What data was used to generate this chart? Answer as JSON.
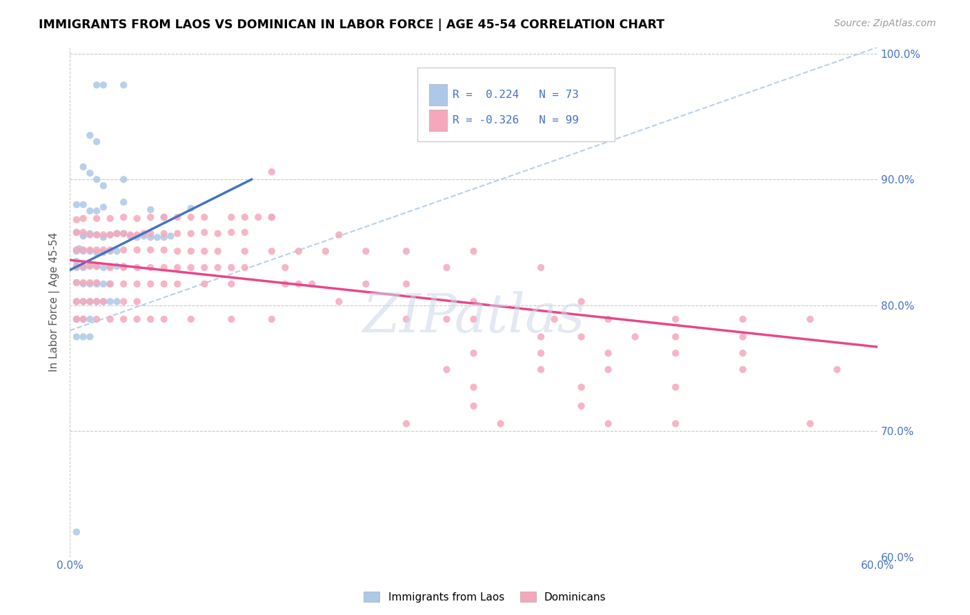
{
  "title": "IMMIGRANTS FROM LAOS VS DOMINICAN IN LABOR FORCE | AGE 45-54 CORRELATION CHART",
  "source": "Source: ZipAtlas.com",
  "ylabel": "In Labor Force | Age 45-54",
  "x_min": 0.0,
  "x_max": 0.6,
  "y_min": 0.6,
  "y_max": 1.005,
  "x_tick_positions": [
    0.0,
    0.1,
    0.2,
    0.3,
    0.4,
    0.5,
    0.6
  ],
  "x_tick_labels": [
    "0.0%",
    "",
    "",
    "",
    "",
    "",
    "60.0%"
  ],
  "y_ticks_right": [
    0.6,
    0.7,
    0.8,
    0.9,
    1.0
  ],
  "y_tick_labels_right": [
    "60.0%",
    "70.0%",
    "80.0%",
    "90.0%",
    "100.0%"
  ],
  "laos_color": "#adc8e8",
  "dominican_color": "#f5a8bb",
  "laos_line_color": "#4472c4",
  "dominican_line_color": "#e8468a",
  "diagonal_line_color": "#b8d0e8",
  "laos_R": 0.224,
  "laos_N": 73,
  "dominican_R": -0.326,
  "dominican_N": 99,
  "watermark": "ZIPatlas",
  "laos_line": [
    [
      0.0,
      0.828
    ],
    [
      0.135,
      0.9
    ]
  ],
  "dominican_line": [
    [
      0.0,
      0.836
    ],
    [
      0.6,
      0.767
    ]
  ],
  "diagonal_line": [
    [
      0.0,
      0.78
    ],
    [
      0.6,
      1.005
    ]
  ],
  "laos_scatter": [
    [
      0.005,
      0.835
    ],
    [
      0.007,
      0.845
    ],
    [
      0.01,
      0.855
    ],
    [
      0.02,
      0.975
    ],
    [
      0.025,
      0.975
    ],
    [
      0.04,
      0.975
    ],
    [
      0.015,
      0.935
    ],
    [
      0.02,
      0.93
    ],
    [
      0.01,
      0.91
    ],
    [
      0.015,
      0.905
    ],
    [
      0.02,
      0.9
    ],
    [
      0.025,
      0.895
    ],
    [
      0.04,
      0.9
    ],
    [
      0.005,
      0.88
    ],
    [
      0.01,
      0.88
    ],
    [
      0.015,
      0.875
    ],
    [
      0.02,
      0.875
    ],
    [
      0.025,
      0.878
    ],
    [
      0.04,
      0.882
    ],
    [
      0.06,
      0.876
    ],
    [
      0.07,
      0.87
    ],
    [
      0.09,
      0.877
    ],
    [
      0.005,
      0.858
    ],
    [
      0.01,
      0.856
    ],
    [
      0.015,
      0.857
    ],
    [
      0.02,
      0.856
    ],
    [
      0.025,
      0.854
    ],
    [
      0.03,
      0.856
    ],
    [
      0.035,
      0.857
    ],
    [
      0.04,
      0.857
    ],
    [
      0.045,
      0.855
    ],
    [
      0.05,
      0.854
    ],
    [
      0.055,
      0.855
    ],
    [
      0.06,
      0.854
    ],
    [
      0.065,
      0.854
    ],
    [
      0.07,
      0.854
    ],
    [
      0.075,
      0.855
    ],
    [
      0.005,
      0.843
    ],
    [
      0.01,
      0.843
    ],
    [
      0.015,
      0.843
    ],
    [
      0.02,
      0.842
    ],
    [
      0.025,
      0.842
    ],
    [
      0.03,
      0.843
    ],
    [
      0.035,
      0.843
    ],
    [
      0.005,
      0.83
    ],
    [
      0.01,
      0.83
    ],
    [
      0.015,
      0.832
    ],
    [
      0.02,
      0.831
    ],
    [
      0.025,
      0.83
    ],
    [
      0.03,
      0.831
    ],
    [
      0.035,
      0.831
    ],
    [
      0.04,
      0.831
    ],
    [
      0.005,
      0.818
    ],
    [
      0.01,
      0.817
    ],
    [
      0.015,
      0.817
    ],
    [
      0.02,
      0.817
    ],
    [
      0.025,
      0.817
    ],
    [
      0.03,
      0.817
    ],
    [
      0.005,
      0.803
    ],
    [
      0.01,
      0.803
    ],
    [
      0.015,
      0.803
    ],
    [
      0.02,
      0.803
    ],
    [
      0.025,
      0.803
    ],
    [
      0.03,
      0.803
    ],
    [
      0.035,
      0.803
    ],
    [
      0.005,
      0.789
    ],
    [
      0.01,
      0.789
    ],
    [
      0.015,
      0.789
    ],
    [
      0.005,
      0.775
    ],
    [
      0.01,
      0.775
    ],
    [
      0.015,
      0.775
    ],
    [
      0.005,
      0.62
    ]
  ],
  "dominican_scatter": [
    [
      0.005,
      0.858
    ],
    [
      0.01,
      0.858
    ],
    [
      0.015,
      0.856
    ],
    [
      0.02,
      0.856
    ],
    [
      0.025,
      0.856
    ],
    [
      0.03,
      0.856
    ],
    [
      0.035,
      0.857
    ],
    [
      0.04,
      0.857
    ],
    [
      0.045,
      0.856
    ],
    [
      0.05,
      0.856
    ],
    [
      0.055,
      0.857
    ],
    [
      0.06,
      0.857
    ],
    [
      0.07,
      0.857
    ],
    [
      0.08,
      0.857
    ],
    [
      0.09,
      0.857
    ],
    [
      0.1,
      0.858
    ],
    [
      0.11,
      0.857
    ],
    [
      0.12,
      0.858
    ],
    [
      0.13,
      0.858
    ],
    [
      0.005,
      0.868
    ],
    [
      0.01,
      0.869
    ],
    [
      0.02,
      0.869
    ],
    [
      0.03,
      0.869
    ],
    [
      0.04,
      0.87
    ],
    [
      0.05,
      0.869
    ],
    [
      0.06,
      0.87
    ],
    [
      0.07,
      0.87
    ],
    [
      0.08,
      0.87
    ],
    [
      0.09,
      0.87
    ],
    [
      0.1,
      0.87
    ],
    [
      0.12,
      0.87
    ],
    [
      0.13,
      0.87
    ],
    [
      0.14,
      0.87
    ],
    [
      0.15,
      0.87
    ],
    [
      0.005,
      0.844
    ],
    [
      0.01,
      0.844
    ],
    [
      0.015,
      0.844
    ],
    [
      0.02,
      0.844
    ],
    [
      0.025,
      0.844
    ],
    [
      0.03,
      0.844
    ],
    [
      0.04,
      0.844
    ],
    [
      0.05,
      0.844
    ],
    [
      0.06,
      0.844
    ],
    [
      0.07,
      0.844
    ],
    [
      0.08,
      0.843
    ],
    [
      0.09,
      0.843
    ],
    [
      0.1,
      0.843
    ],
    [
      0.11,
      0.843
    ],
    [
      0.13,
      0.843
    ],
    [
      0.15,
      0.843
    ],
    [
      0.17,
      0.843
    ],
    [
      0.19,
      0.843
    ],
    [
      0.22,
      0.843
    ],
    [
      0.005,
      0.831
    ],
    [
      0.01,
      0.831
    ],
    [
      0.015,
      0.831
    ],
    [
      0.02,
      0.831
    ],
    [
      0.03,
      0.83
    ],
    [
      0.04,
      0.83
    ],
    [
      0.05,
      0.83
    ],
    [
      0.06,
      0.83
    ],
    [
      0.07,
      0.83
    ],
    [
      0.08,
      0.83
    ],
    [
      0.09,
      0.83
    ],
    [
      0.1,
      0.83
    ],
    [
      0.11,
      0.83
    ],
    [
      0.12,
      0.83
    ],
    [
      0.13,
      0.83
    ],
    [
      0.16,
      0.83
    ],
    [
      0.005,
      0.818
    ],
    [
      0.01,
      0.818
    ],
    [
      0.015,
      0.818
    ],
    [
      0.02,
      0.818
    ],
    [
      0.03,
      0.817
    ],
    [
      0.04,
      0.817
    ],
    [
      0.05,
      0.817
    ],
    [
      0.06,
      0.817
    ],
    [
      0.07,
      0.817
    ],
    [
      0.08,
      0.817
    ],
    [
      0.1,
      0.817
    ],
    [
      0.12,
      0.817
    ],
    [
      0.16,
      0.817
    ],
    [
      0.18,
      0.817
    ],
    [
      0.005,
      0.803
    ],
    [
      0.01,
      0.803
    ],
    [
      0.015,
      0.803
    ],
    [
      0.02,
      0.803
    ],
    [
      0.025,
      0.803
    ],
    [
      0.04,
      0.803
    ],
    [
      0.05,
      0.803
    ],
    [
      0.005,
      0.789
    ],
    [
      0.01,
      0.789
    ],
    [
      0.02,
      0.789
    ],
    [
      0.03,
      0.789
    ],
    [
      0.04,
      0.789
    ],
    [
      0.05,
      0.789
    ],
    [
      0.06,
      0.789
    ],
    [
      0.07,
      0.789
    ],
    [
      0.09,
      0.789
    ],
    [
      0.12,
      0.789
    ],
    [
      0.15,
      0.789
    ],
    [
      0.3,
      0.803
    ],
    [
      0.38,
      0.803
    ],
    [
      0.15,
      0.87
    ],
    [
      0.28,
      0.83
    ],
    [
      0.35,
      0.83
    ],
    [
      0.2,
      0.856
    ],
    [
      0.25,
      0.843
    ],
    [
      0.3,
      0.843
    ],
    [
      0.17,
      0.817
    ],
    [
      0.22,
      0.817
    ],
    [
      0.25,
      0.817
    ],
    [
      0.2,
      0.803
    ],
    [
      0.25,
      0.789
    ],
    [
      0.28,
      0.789
    ],
    [
      0.3,
      0.789
    ],
    [
      0.36,
      0.789
    ],
    [
      0.4,
      0.789
    ],
    [
      0.35,
      0.775
    ],
    [
      0.38,
      0.775
    ],
    [
      0.42,
      0.775
    ],
    [
      0.45,
      0.789
    ],
    [
      0.5,
      0.789
    ],
    [
      0.45,
      0.775
    ],
    [
      0.5,
      0.775
    ],
    [
      0.55,
      0.789
    ],
    [
      0.3,
      0.762
    ],
    [
      0.35,
      0.762
    ],
    [
      0.4,
      0.762
    ],
    [
      0.45,
      0.762
    ],
    [
      0.5,
      0.762
    ],
    [
      0.28,
      0.749
    ],
    [
      0.35,
      0.749
    ],
    [
      0.4,
      0.749
    ],
    [
      0.5,
      0.749
    ],
    [
      0.57,
      0.749
    ],
    [
      0.3,
      0.735
    ],
    [
      0.38,
      0.735
    ],
    [
      0.45,
      0.735
    ],
    [
      0.3,
      0.72
    ],
    [
      0.38,
      0.72
    ],
    [
      0.25,
      0.706
    ],
    [
      0.32,
      0.706
    ],
    [
      0.4,
      0.706
    ],
    [
      0.45,
      0.706
    ],
    [
      0.55,
      0.706
    ],
    [
      0.15,
      0.906
    ]
  ]
}
